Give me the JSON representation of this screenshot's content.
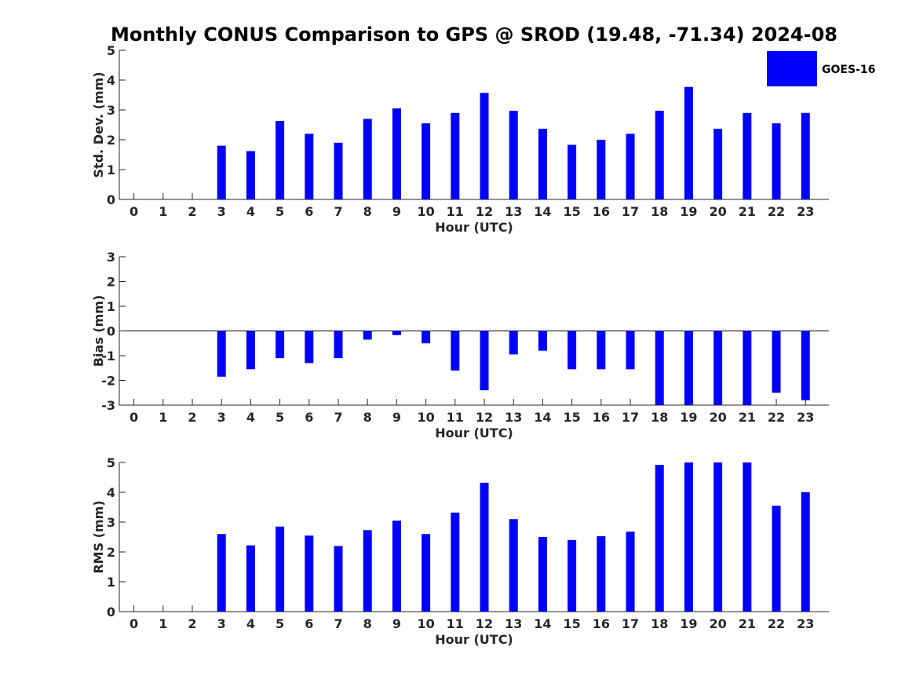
{
  "title": "Monthly CONUS Comparison to GPS @ SROD (19.48, -71.34) 2024-08",
  "legend": {
    "label": "GOES-16",
    "color": "#0000ff",
    "placement": "top-right"
  },
  "bar_color": "#0000ff",
  "chart_data": [
    {
      "type": "bar",
      "ylabel": "Std. Dev. (mm)",
      "xlabel": "Hour (UTC)",
      "ylim": [
        0,
        5
      ],
      "yticks": [
        0,
        1,
        2,
        3,
        4,
        5
      ],
      "categories": [
        0,
        1,
        2,
        3,
        4,
        5,
        6,
        7,
        8,
        9,
        10,
        11,
        12,
        13,
        14,
        15,
        16,
        17,
        18,
        19,
        20,
        21,
        22,
        23
      ],
      "values": [
        null,
        null,
        null,
        1.8,
        1.62,
        2.63,
        2.2,
        1.9,
        2.7,
        3.05,
        2.55,
        2.9,
        3.57,
        2.97,
        2.37,
        1.83,
        2.0,
        2.2,
        2.97,
        3.77,
        2.37,
        2.9,
        2.55,
        2.9
      ],
      "grid": false
    },
    {
      "type": "bar",
      "ylabel": "Bias (mm)",
      "xlabel": "Hour (UTC)",
      "ylim": [
        -3,
        3
      ],
      "yticks": [
        -3,
        -2,
        -1,
        0,
        1,
        2,
        3
      ],
      "categories": [
        0,
        1,
        2,
        3,
        4,
        5,
        6,
        7,
        8,
        9,
        10,
        11,
        12,
        13,
        14,
        15,
        16,
        17,
        18,
        19,
        20,
        21,
        22,
        23
      ],
      "values": [
        null,
        null,
        null,
        -1.85,
        -1.55,
        -1.1,
        -1.3,
        -1.1,
        -0.35,
        -0.17,
        -0.5,
        -1.6,
        -2.4,
        -0.95,
        -0.8,
        -1.55,
        -1.55,
        -1.55,
        -3.0,
        -3.0,
        -3.0,
        -3.0,
        -2.5,
        -2.8
      ],
      "grid": false
    },
    {
      "type": "bar",
      "ylabel": "RMS (mm)",
      "xlabel": "Hour (UTC)",
      "ylim": [
        0,
        5
      ],
      "yticks": [
        0,
        1,
        2,
        3,
        4,
        5
      ],
      "categories": [
        0,
        1,
        2,
        3,
        4,
        5,
        6,
        7,
        8,
        9,
        10,
        11,
        12,
        13,
        14,
        15,
        16,
        17,
        18,
        19,
        20,
        21,
        22,
        23
      ],
      "values": [
        null,
        null,
        null,
        2.6,
        2.22,
        2.85,
        2.55,
        2.2,
        2.73,
        3.05,
        2.6,
        3.32,
        4.32,
        3.1,
        2.5,
        2.4,
        2.53,
        2.68,
        4.92,
        5.0,
        5.0,
        5.0,
        3.55,
        4.0
      ],
      "grid": false
    }
  ]
}
